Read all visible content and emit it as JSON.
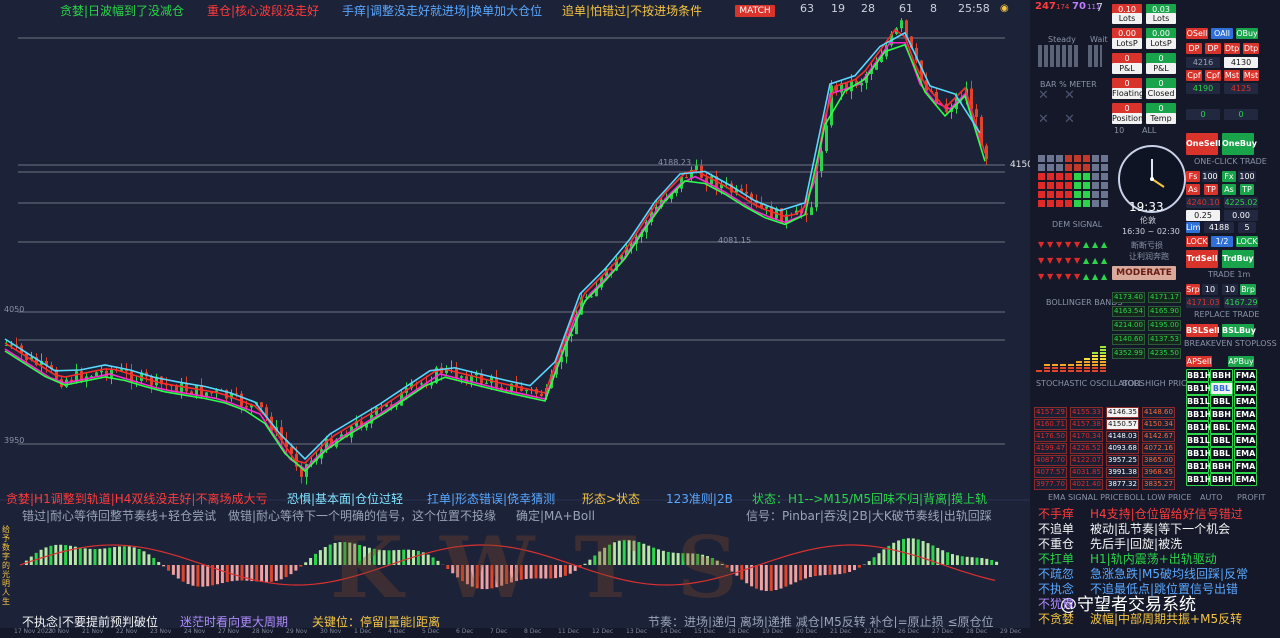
{
  "header": {
    "items": [
      {
        "text": "贪婪|日波幅到了没减仓",
        "color": "#2bd44a"
      },
      {
        "text": "重仓|核心波段没走好",
        "color": "#ff3b3b"
      },
      {
        "text": "手痒|调整没走好就进场|换单加大仓位",
        "color": "#5aa8ff"
      },
      {
        "text": "追单|怕错过|不按进场条件",
        "color": "#f5c542"
      }
    ],
    "match_label": "MATCH",
    "stats": [
      "63",
      "19",
      "28",
      "61",
      "8",
      "25:58",
      "7"
    ],
    "badge_a": "247",
    "badge_a_sub": "174",
    "badge_b": "70",
    "badge_b_sub": "111"
  },
  "chart": {
    "price_label": "4150",
    "level_labels": [
      "4188.23",
      "4081.15",
      "4050",
      "3950"
    ],
    "mid_row": [
      {
        "text": "贪婪|H1调整到轨道|H4双线没走好|不离场成大亏",
        "color": "#ff3b3b"
      },
      {
        "text": "恐惧|基本面|仓位过轻",
        "color": "#7fe3ff"
      },
      {
        "text": "扛单|形态错误|侥幸猜测",
        "color": "#5aa8ff"
      },
      {
        "text": "形态>状态",
        "color": "#f5c542"
      },
      {
        "text": "123准则|2B",
        "color": "#5aa8ff"
      },
      {
        "text": "状态：H1-->M15/M5回味不归|背离|摸上轨",
        "color": "#2bd44a"
      }
    ],
    "sub_row": [
      {
        "text": "错过|耐心等待回整节奏线+轻仓尝试",
        "color": "#9aa3b8"
      },
      {
        "text": "做错|耐心等待下一个明确的信号，这个位置不投缘",
        "color": "#9aa3b8"
      },
      {
        "text": "确定|MA+Boll",
        "color": "#9aa3b8"
      },
      {
        "text": "信号：Pinbar|吞没|2B|大K破节奏线|出轨回踩",
        "color": "#9aa3b8"
      }
    ],
    "osc_watermark": "KWTS",
    "bottom_row": [
      {
        "text": "不执念|不要提前预判破位",
        "color": "#f5f5f5"
      },
      {
        "text": "迷茫时看向更大周期",
        "color": "#b08cff"
      },
      {
        "text": "关键位：停留|量能|距离",
        "color": "#f5c542"
      },
      {
        "text": "节奏：进场|递归 离场|递推 减仓|M5反转 补仓|=原止损 ≤原仓位",
        "color": "#9aa3b8"
      }
    ],
    "left_vertical": "给予数字的光明人生",
    "right_rules": [
      {
        "k": "不手痒",
        "v": "H4支持|仓位留给好信号错过",
        "kc": "#ff3b3b",
        "vc": "#ff3b3b"
      },
      {
        "k": "不追单",
        "v": "被动|乱节奏|等下一个机会",
        "kc": "#f5f5f5",
        "vc": "#f5f5f5"
      },
      {
        "k": "不重仓",
        "v": "先后手|回旋|被洗",
        "kc": "#f5f5f5",
        "vc": "#f5f5f5"
      },
      {
        "k": "不扛单",
        "v": "H1|轨内震荡+出轨驱动",
        "kc": "#2bd44a",
        "vc": "#2bd44a"
      },
      {
        "k": "不疏忽",
        "v": "急涨急跌|M5破均线回踩|反常",
        "kc": "#5aa8ff",
        "vc": "#5aa8ff"
      },
      {
        "k": "不执念",
        "v": "不追最低点|跳位置信号出错",
        "kc": "#5aa8ff",
        "vc": "#5aa8ff"
      },
      {
        "k": "不犹豫",
        "v": "",
        "kc": "#b08cff",
        "vc": "#b08cff"
      },
      {
        "k": "不贪婪",
        "v": "波幅|中部周期共振+M5反转",
        "kc": "#f5c542",
        "vc": "#f5c542"
      }
    ],
    "brand": "@守望者交易系统",
    "x_dates": [
      "17 Nov 2023",
      "20 Nov",
      "21 Nov",
      "22 Nov",
      "23 Nov",
      "24 Nov",
      "27 Nov",
      "28 Nov",
      "29 Nov",
      "30 Nov",
      "1 Dec",
      "4 Dec",
      "5 Dec",
      "6 Dec",
      "7 Dec",
      "8 Dec",
      "11 Dec",
      "12 Dec",
      "13 Dec",
      "14 Dec",
      "15 Dec",
      "18 Dec",
      "19 Dec",
      "20 Dec",
      "21 Dec",
      "22 Dec",
      "26 Dec",
      "27 Dec",
      "28 Dec",
      "29 Dec"
    ]
  },
  "panel": {
    "lots_label": "Lots",
    "lots_a": "0.10",
    "lots_b": "0.03",
    "lotsp_label": "LotsP",
    "pl_label": "P&L",
    "pl_a": "0.00",
    "pl_b": "0.00",
    "floating_label": "Floating",
    "closed_label": "Closed",
    "position_label": "Position",
    "temp_label": "Temp",
    "val_zero": "0",
    "val_ten": "10",
    "all_label": "ALL",
    "steady": "Steady",
    "wait": "Wait",
    "bar_meter": "BAR % METER",
    "osell": "OSell",
    "oall": "OAll",
    "obuy": "OBuy",
    "dp": "DP",
    "dtp": "Dtp",
    "price_a": "4216",
    "price_b": "4130",
    "price_c": "4190",
    "price_d": "4125",
    "cpf": "Cpf",
    "mst": "Mst",
    "one_sell": "OneSell",
    "one_buy": "OneBuy",
    "one_click": "ONE-CLICK TRADE",
    "time": "19:33",
    "clock_sub": "伦敦",
    "session": "16:30 ~ 02:30",
    "note_a": "断断亏损",
    "note_b": "让利润奔跑",
    "moderate": "MODERATE",
    "fs": "Fs",
    "fx": "Fx",
    "hundred": "100",
    "as": "As",
    "tp": "TP",
    "p1": "4240.10",
    "p2": "4225.02",
    "q1": "0.25",
    "q2": "0.00",
    "lim": "Lim",
    "p3": "4188",
    "five": "5",
    "lock": "LOCK",
    "half": "1/2",
    "trd_sell": "TrdSell",
    "trd_buy": "TrdBuy",
    "trade_sub": "TRADE 1m",
    "srp": "Srp",
    "brp": "Brp",
    "p4": "4171.03",
    "p5": "4167.29",
    "replace": "REPLACE TRADE",
    "bsl_sell": "BSLSell",
    "bsl_buy": "BSLBuy",
    "breakeven": "BREAKEVEN STOPLOSS",
    "ap_sell": "APSell",
    "ap_buy": "APBuy",
    "bb_rows": [
      [
        "BB1H",
        "BBH",
        "FMA"
      ],
      [
        "BB1H",
        "BBL",
        "FMA"
      ],
      [
        "BB1L",
        "BBL",
        "EMA"
      ],
      [
        "BB1H",
        "BBH",
        "EMA"
      ],
      [
        "BB1H",
        "BBL",
        "EMA"
      ],
      [
        "BB1L",
        "BBL",
        "EMA"
      ],
      [
        "BB1H",
        "BBL",
        "EMA"
      ],
      [
        "BB1H",
        "BBH",
        "FMA"
      ],
      [
        "BB1H",
        "BBH",
        "EMA"
      ]
    ],
    "auto": "AUTO",
    "profit": "PROFIT",
    "bollinger": "BOLLINGER BANDS",
    "stochastic": "STOCHASTIC OSCILLATORS",
    "boll_high": "BOLL HIGH PRICE",
    "boll_low": "BOLL LOW PRICE",
    "ema_signal": "EMA SIGNAL PRICE",
    "dem_signal": "DEM SIGNAL",
    "boll_vals_a": [
      "4173.40",
      "4171.17",
      "4163.54",
      "4165.90",
      "4214.00",
      "4195.00",
      "4140.60",
      "4137.53",
      "4352.99",
      "4235.50"
    ],
    "price_grid_l": [
      "4157.29",
      "4160.71",
      "4176.50",
      "4199.47",
      "4087.70",
      "4077.57",
      "3977.70"
    ],
    "price_grid_m": [
      "4155.33",
      "4157.38",
      "4170.34",
      "4226.52",
      "4122.07",
      "4031.85",
      "4021.40"
    ],
    "price_grid_r": [
      "4146.35",
      "4150.57",
      "4148.03",
      "4093.68",
      "3957.25",
      "3991.38",
      "3877.32"
    ],
    "price_grid_s": [
      "4148.60",
      "4150.34",
      "4142.67",
      "4072.16",
      "3865.00",
      "3968.45",
      "3835.27"
    ]
  }
}
